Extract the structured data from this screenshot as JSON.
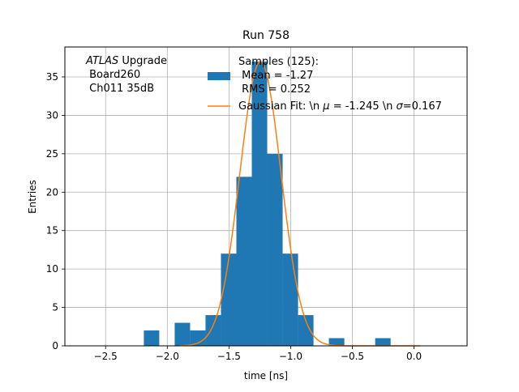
{
  "chart_data": {
    "type": "bar",
    "title": "Run 758",
    "xlabel": "time [ns]",
    "ylabel": "Entries",
    "xlim": [
      -2.83,
      0.43
    ],
    "ylim": [
      0,
      38.9
    ],
    "xticks": [
      -2.5,
      -2.0,
      -1.5,
      -1.0,
      -0.5,
      0.0
    ],
    "xtick_labels": [
      "−2.5",
      "−2.0",
      "−1.5",
      "−1.0",
      "−0.5",
      "0.0"
    ],
    "yticks": [
      0,
      5,
      10,
      15,
      20,
      25,
      30,
      35
    ],
    "ytick_labels": [
      "0",
      "5",
      "10",
      "15",
      "20",
      "25",
      "30",
      "35"
    ],
    "grid": true,
    "histogram": {
      "name": "Samples",
      "color": "#1f77b4",
      "bins": [
        {
          "x0": -2.19,
          "x1": -2.065,
          "count": 2
        },
        {
          "x0": -1.94,
          "x1": -1.815,
          "count": 3
        },
        {
          "x0": -1.815,
          "x1": -1.69,
          "count": 2
        },
        {
          "x0": -1.69,
          "x1": -1.565,
          "count": 4
        },
        {
          "x0": -1.565,
          "x1": -1.44,
          "count": 12
        },
        {
          "x0": -1.44,
          "x1": -1.315,
          "count": 22
        },
        {
          "x0": -1.315,
          "x1": -1.19,
          "count": 37
        },
        {
          "x0": -1.19,
          "x1": -1.065,
          "count": 25
        },
        {
          "x0": -1.065,
          "x1": -0.94,
          "count": 12
        },
        {
          "x0": -0.94,
          "x1": -0.815,
          "count": 4
        },
        {
          "x0": -0.69,
          "x1": -0.565,
          "count": 1
        },
        {
          "x0": -0.315,
          "x1": -0.19,
          "count": 1
        }
      ]
    },
    "fit": {
      "name": "Gaussian Fit",
      "color": "#ff7f0e",
      "mu": -1.245,
      "sigma": 0.167,
      "amplitude": 37,
      "x_range": [
        -1.9,
        0.05
      ]
    },
    "legend_placement": "top-center",
    "legend": {
      "samples_line1": "Samples (125):",
      "samples_line2": " Mean = -1.27",
      "samples_line3": " RMS = 0.252",
      "fit_prefix": "Gaussian Fit: \\n ",
      "fit_mu_symbol": "μ",
      "fit_middle": " = -1.245 \\n ",
      "fit_sigma_symbol": "σ",
      "fit_suffix": "=0.167"
    },
    "annotation": {
      "atlas": "ATLAS",
      "upgrade": " Upgrade",
      "line2": " Board260",
      "line3": " Ch011 35dB"
    }
  }
}
